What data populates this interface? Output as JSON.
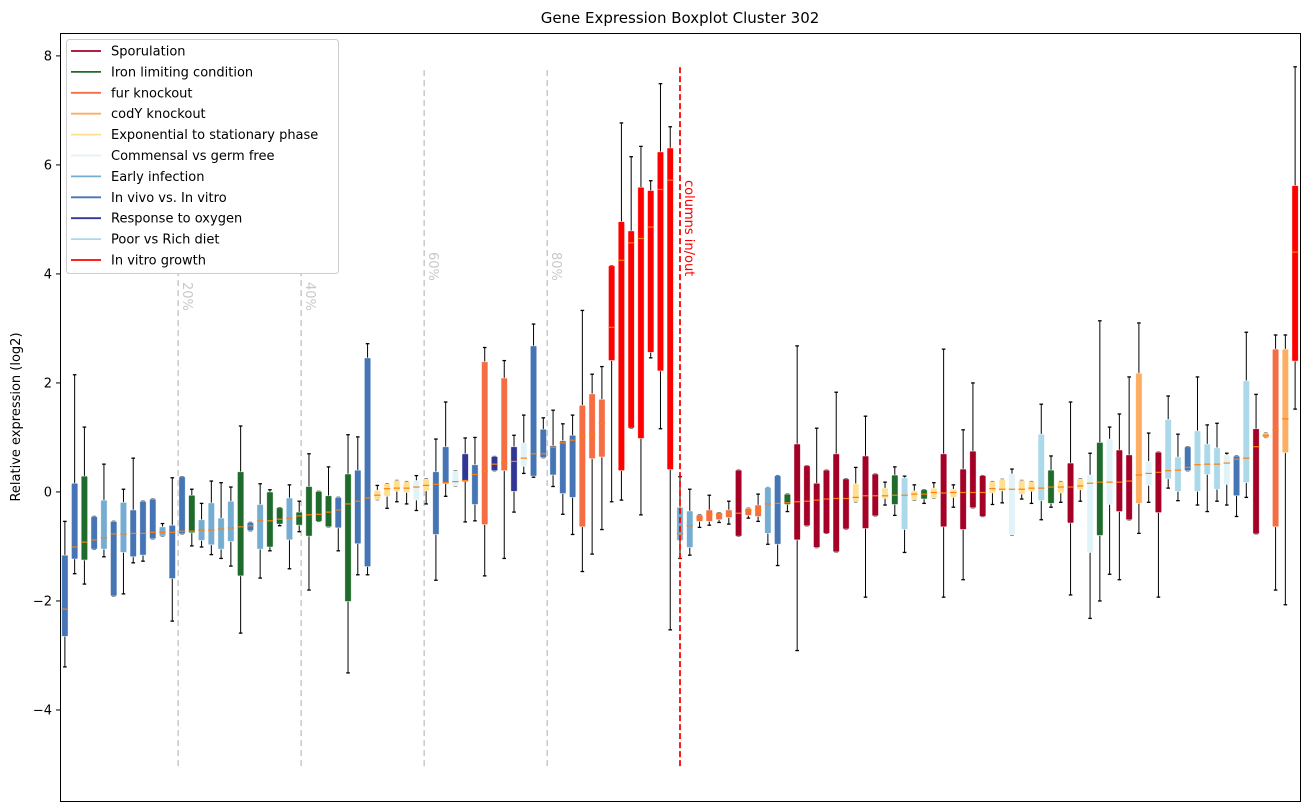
{
  "chart_data": {
    "type": "boxplot",
    "title": "Gene Expression Boxplot Cluster 302",
    "xlabel": "",
    "ylabel": "Relative expression (log2)",
    "ylim": [
      -5.67,
      8.42
    ],
    "xlim": [
      0.5,
      127.5
    ],
    "yticks": [
      -4,
      -2,
      0,
      2,
      4,
      6,
      8
    ],
    "grid": false,
    "legend_position": "top-left",
    "median_color": "#ff7f0e",
    "groups": [
      {
        "name": "Sporulation",
        "color": "#a50026"
      },
      {
        "name": "Iron limiting condition",
        "color": "#1e6b2b"
      },
      {
        "name": "fur knockout",
        "color": "#f46d43"
      },
      {
        "name": "codY knockout",
        "color": "#fdae61"
      },
      {
        "name": "Exponential to stationary phase",
        "color": "#fee090"
      },
      {
        "name": "Commensal vs germ free",
        "color": "#e0f3f8"
      },
      {
        "name": "Early infection",
        "color": "#74add1"
      },
      {
        "name": "In vivo vs. In vitro",
        "color": "#4575b4"
      },
      {
        "name": "Response to oxygen",
        "color": "#313695"
      },
      {
        "name": "Poor vs Rich diet",
        "color": "#abd9e9"
      },
      {
        "name": "In vitro growth",
        "color": "#ff0000"
      }
    ],
    "box_fields": [
      "group_index",
      "whisker_low",
      "q1",
      "median",
      "q3",
      "whisker_high"
    ],
    "boxes": [
      [
        7,
        -3.21,
        -2.65,
        -2.15,
        -1.16,
        -0.54
      ],
      [
        7,
        -1.5,
        -1.23,
        -1.01,
        0.16,
        2.15
      ],
      [
        1,
        -1.69,
        -1.25,
        -0.92,
        0.29,
        1.19
      ],
      [
        7,
        -1.05,
        -1.05,
        -0.88,
        -0.45,
        -0.45
      ],
      [
        6,
        -1.19,
        -1.05,
        -0.84,
        -0.15,
        0.51
      ],
      [
        7,
        -1.91,
        -1.91,
        -0.77,
        -0.54,
        -0.54
      ],
      [
        6,
        -1.87,
        -1.11,
        -0.77,
        -0.19,
        0.05
      ],
      [
        7,
        -1.3,
        -1.19,
        -0.76,
        -0.33,
        0.62
      ],
      [
        7,
        -1.27,
        -1.16,
        -0.76,
        -0.17,
        -0.17
      ],
      [
        7,
        -0.86,
        -0.86,
        -0.74,
        -0.13,
        -0.13
      ],
      [
        6,
        -0.81,
        -0.81,
        -0.74,
        -0.64,
        -0.58
      ],
      [
        7,
        -2.37,
        -1.59,
        -0.74,
        -0.61,
        0.26
      ],
      [
        7,
        -0.77,
        -0.77,
        -0.72,
        0.28,
        0.28
      ],
      [
        1,
        -0.99,
        -0.75,
        -0.72,
        -0.06,
        0.05
      ],
      [
        6,
        -1.01,
        -0.89,
        -0.7,
        -0.51,
        -0.21
      ],
      [
        6,
        -1.15,
        -0.97,
        -0.7,
        -0.2,
        0.2
      ],
      [
        6,
        -1.22,
        -1.05,
        -0.68,
        -0.48,
        0.17
      ],
      [
        6,
        -1.36,
        -0.91,
        -0.66,
        -0.17,
        0.09
      ],
      [
        1,
        -2.59,
        -1.54,
        -0.64,
        0.37,
        1.21
      ],
      [
        7,
        -0.71,
        -0.71,
        -0.62,
        -0.56,
        -0.56
      ],
      [
        6,
        -1.58,
        -1.05,
        -0.53,
        -0.23,
        0.15
      ],
      [
        1,
        -1.08,
        -1.01,
        -0.53,
        0.0,
        0.04
      ],
      [
        1,
        -0.62,
        -0.59,
        -0.5,
        -0.29,
        -0.29
      ],
      [
        6,
        -1.41,
        -0.88,
        -0.48,
        -0.11,
        0.13
      ],
      [
        1,
        -0.73,
        -0.61,
        -0.44,
        -0.37,
        -0.17
      ],
      [
        1,
        -1.8,
        -0.81,
        -0.42,
        0.1,
        0.7
      ],
      [
        1,
        -0.54,
        -0.54,
        -0.41,
        0.01,
        0.01
      ],
      [
        1,
        -0.64,
        -0.64,
        -0.37,
        -0.07,
        0.46
      ],
      [
        7,
        -1.08,
        -0.66,
        -0.33,
        -0.1,
        -0.1
      ],
      [
        1,
        -3.32,
        -2.01,
        -0.22,
        0.33,
        1.05
      ],
      [
        7,
        -1.52,
        -0.95,
        -0.17,
        0.4,
        1.01
      ],
      [
        7,
        -1.52,
        -1.37,
        -0.11,
        2.46,
        2.72
      ],
      [
        4,
        -0.14,
        -0.14,
        -0.06,
        0.03,
        0.12
      ],
      [
        4,
        -0.3,
        -0.08,
        0.06,
        0.15,
        0.15
      ],
      [
        4,
        -0.18,
        0.01,
        0.07,
        0.21,
        0.21
      ],
      [
        4,
        -0.22,
        -0.01,
        0.07,
        0.19,
        0.19
      ],
      [
        5,
        -0.34,
        -0.15,
        0.09,
        0.21,
        0.3
      ],
      [
        4,
        -0.22,
        0.02,
        0.12,
        0.24,
        0.24
      ],
      [
        7,
        -1.62,
        -0.78,
        0.14,
        0.37,
        0.97
      ],
      [
        7,
        -0.08,
        0.15,
        0.17,
        0.83,
        1.65
      ],
      [
        5,
        0.11,
        0.11,
        0.19,
        0.39,
        0.39
      ],
      [
        8,
        -0.55,
        0.19,
        0.21,
        0.7,
        0.99
      ],
      [
        7,
        -0.53,
        -0.23,
        0.32,
        0.5,
        1.0
      ],
      [
        2,
        -1.54,
        -0.6,
        0.38,
        2.39,
        2.65
      ],
      [
        8,
        0.39,
        0.39,
        0.51,
        0.65,
        0.65
      ],
      [
        2,
        -1.22,
        0.39,
        0.53,
        2.09,
        2.41
      ],
      [
        8,
        -0.37,
        0.01,
        0.56,
        0.83,
        1.04
      ],
      [
        5,
        0.34,
        0.47,
        0.62,
        0.9,
        1.41
      ],
      [
        7,
        0.27,
        0.29,
        0.7,
        2.68,
        3.08
      ],
      [
        7,
        0.63,
        0.63,
        0.7,
        1.15,
        1.36
      ],
      [
        7,
        0.1,
        0.31,
        0.82,
        0.85,
        1.5
      ],
      [
        7,
        -0.41,
        -0.03,
        0.9,
        0.94,
        1.25
      ],
      [
        7,
        -0.78,
        -0.1,
        0.95,
        1.04,
        1.41
      ],
      [
        2,
        -1.46,
        -0.64,
        1.02,
        1.59,
        3.33
      ],
      [
        2,
        -1.14,
        0.61,
        1.06,
        1.8,
        2.16
      ],
      [
        2,
        -0.69,
        0.64,
        1.26,
        1.7,
        2.3
      ],
      [
        10,
        -0.18,
        2.41,
        3.02,
        4.15,
        4.15
      ],
      [
        10,
        -0.15,
        0.39,
        4.25,
        4.96,
        6.77
      ],
      [
        10,
        1.17,
        1.17,
        4.57,
        4.79,
        6.15
      ],
      [
        10,
        -0.42,
        0.98,
        4.65,
        5.59,
        6.34
      ],
      [
        10,
        2.46,
        2.56,
        4.86,
        5.53,
        5.71
      ],
      [
        10,
        1.16,
        2.22,
        5.55,
        6.24,
        7.49
      ],
      [
        10,
        -2.53,
        0.41,
        5.72,
        6.31,
        6.7
      ],
      [
        6,
        -1.22,
        -0.89,
        -0.77,
        -0.28,
        0.28
      ],
      [
        6,
        -1.16,
        -1.02,
        -0.62,
        -0.35,
        0.05
      ],
      [
        2,
        -0.65,
        -0.54,
        -0.48,
        -0.42,
        -0.42
      ],
      [
        2,
        -0.61,
        -0.54,
        -0.42,
        -0.33,
        -0.06
      ],
      [
        2,
        -0.56,
        -0.51,
        -0.42,
        -0.38,
        -0.38
      ],
      [
        2,
        -0.59,
        -0.47,
        -0.4,
        -0.33,
        -0.17
      ],
      [
        0,
        -0.81,
        -0.81,
        -0.39,
        0.4,
        0.4
      ],
      [
        2,
        -0.48,
        -0.43,
        -0.34,
        -0.3,
        -0.3
      ],
      [
        2,
        -0.54,
        -0.45,
        -0.34,
        -0.24,
        -0.04
      ],
      [
        6,
        -0.96,
        -0.76,
        -0.22,
        0.08,
        0.08
      ],
      [
        7,
        -1.35,
        -0.96,
        -0.21,
        0.3,
        0.3
      ],
      [
        1,
        -0.36,
        -0.23,
        -0.2,
        -0.04,
        -0.04
      ],
      [
        0,
        -2.91,
        -0.88,
        -0.18,
        0.88,
        2.68
      ],
      [
        0,
        -0.62,
        -0.62,
        -0.17,
        0.48,
        0.48
      ],
      [
        0,
        -1.02,
        -1.02,
        -0.15,
        0.16,
        1.17
      ],
      [
        0,
        -0.76,
        -0.76,
        -0.13,
        0.4,
        0.4
      ],
      [
        0,
        -1.1,
        -1.1,
        -0.12,
        0.7,
        1.83
      ],
      [
        0,
        -0.68,
        -0.68,
        -0.12,
        0.24,
        0.24
      ],
      [
        4,
        -0.18,
        -0.18,
        -0.1,
        0.15,
        0.45
      ],
      [
        0,
        -1.93,
        -0.67,
        -0.07,
        0.66,
        1.39
      ],
      [
        0,
        -0.44,
        -0.44,
        -0.07,
        0.33,
        0.33
      ],
      [
        4,
        -0.24,
        -0.12,
        -0.07,
        0.07,
        0.18
      ],
      [
        1,
        -0.43,
        -0.23,
        -0.06,
        0.31,
        0.46
      ],
      [
        9,
        -1.11,
        -0.69,
        -0.06,
        0.26,
        0.29
      ],
      [
        4,
        -0.15,
        -0.15,
        -0.04,
        0.02,
        0.13
      ],
      [
        1,
        -0.21,
        -0.13,
        -0.04,
        0.04,
        0.04
      ],
      [
        4,
        -0.11,
        -0.11,
        -0.01,
        0.07,
        0.17
      ],
      [
        0,
        -1.93,
        -0.64,
        -0.02,
        0.7,
        2.62
      ],
      [
        4,
        -0.28,
        -0.1,
        -0.01,
        0.05,
        0.13
      ],
      [
        0,
        -1.61,
        -0.69,
        -0.01,
        0.42,
        1.14
      ],
      [
        0,
        -0.29,
        -0.29,
        -0.01,
        0.75,
        2.0
      ],
      [
        0,
        -0.45,
        -0.45,
        -0.01,
        0.3,
        0.3
      ],
      [
        4,
        -0.23,
        -0.02,
        0.06,
        0.19,
        0.19
      ],
      [
        4,
        -0.2,
        0.02,
        0.05,
        0.23,
        0.23
      ],
      [
        5,
        -0.79,
        -0.79,
        0.05,
        0.33,
        0.42
      ],
      [
        4,
        -0.13,
        -0.04,
        0.05,
        0.21,
        0.21
      ],
      [
        4,
        -0.21,
        0.01,
        0.07,
        0.19,
        0.19
      ],
      [
        9,
        -0.51,
        -0.16,
        0.07,
        1.06,
        1.61
      ],
      [
        1,
        -0.28,
        -0.21,
        0.09,
        0.4,
        0.66
      ],
      [
        4,
        -0.19,
        -0.02,
        0.09,
        0.19,
        0.19
      ],
      [
        0,
        -1.89,
        -0.57,
        0.09,
        0.53,
        1.65
      ],
      [
        4,
        -0.17,
        0.04,
        0.11,
        0.24,
        0.24
      ],
      [
        5,
        -2.32,
        -1.11,
        0.16,
        0.31,
        0.71
      ],
      [
        1,
        -2.0,
        -0.8,
        0.18,
        0.91,
        3.14
      ],
      [
        5,
        -1.51,
        -0.23,
        0.18,
        0.97,
        1.19
      ],
      [
        0,
        -1.61,
        -0.36,
        0.18,
        0.77,
        1.43
      ],
      [
        0,
        -0.51,
        -0.51,
        0.2,
        0.68,
        2.11
      ],
      [
        3,
        -0.76,
        -0.21,
        0.31,
        2.18,
        3.1
      ],
      [
        5,
        -0.19,
        0.12,
        0.34,
        0.56,
        1.08
      ],
      [
        0,
        -1.93,
        -0.38,
        0.36,
        0.73,
        0.73
      ],
      [
        9,
        0.07,
        0.24,
        0.39,
        1.33,
        1.76
      ],
      [
        9,
        -0.16,
        0.01,
        0.4,
        0.64,
        1.06
      ],
      [
        7,
        0.39,
        0.39,
        0.45,
        0.83,
        0.83
      ],
      [
        9,
        -0.24,
        0.01,
        0.5,
        1.12,
        2.11
      ],
      [
        9,
        -0.36,
        0.32,
        0.51,
        0.88,
        1.23
      ],
      [
        9,
        -0.17,
        0.05,
        0.51,
        0.81,
        1.26
      ],
      [
        5,
        -0.24,
        0.14,
        0.53,
        0.68,
        0.71
      ],
      [
        7,
        -0.45,
        -0.07,
        0.6,
        0.66,
        0.66
      ],
      [
        9,
        -0.1,
        0.17,
        0.62,
        2.04,
        2.93
      ],
      [
        0,
        -0.77,
        -0.77,
        0.83,
        1.16,
        1.79
      ],
      [
        3,
        1.0,
        1.0,
        1.03,
        1.08,
        1.08
      ],
      [
        2,
        -1.8,
        -0.64,
        1.14,
        2.62,
        2.88
      ],
      [
        3,
        -2.07,
        0.72,
        1.34,
        2.62,
        2.88
      ],
      [
        10,
        1.52,
        2.4,
        4.4,
        5.62,
        7.8
      ]
    ],
    "percentile_lines": [
      {
        "x": 12.6,
        "label": "20%"
      },
      {
        "x": 25.2,
        "label": "40%"
      },
      {
        "x": 37.8,
        "label": "60%"
      },
      {
        "x": 50.4,
        "label": "80%"
      }
    ],
    "percentile_line_yrange": [
      -5.03,
      7.8
    ],
    "percentile_line_color": "#c8c8c8",
    "split_line": {
      "x": 64,
      "label": "columns in/out",
      "color": "#ff0000",
      "yrange": [
        -5.03,
        7.8
      ]
    }
  }
}
